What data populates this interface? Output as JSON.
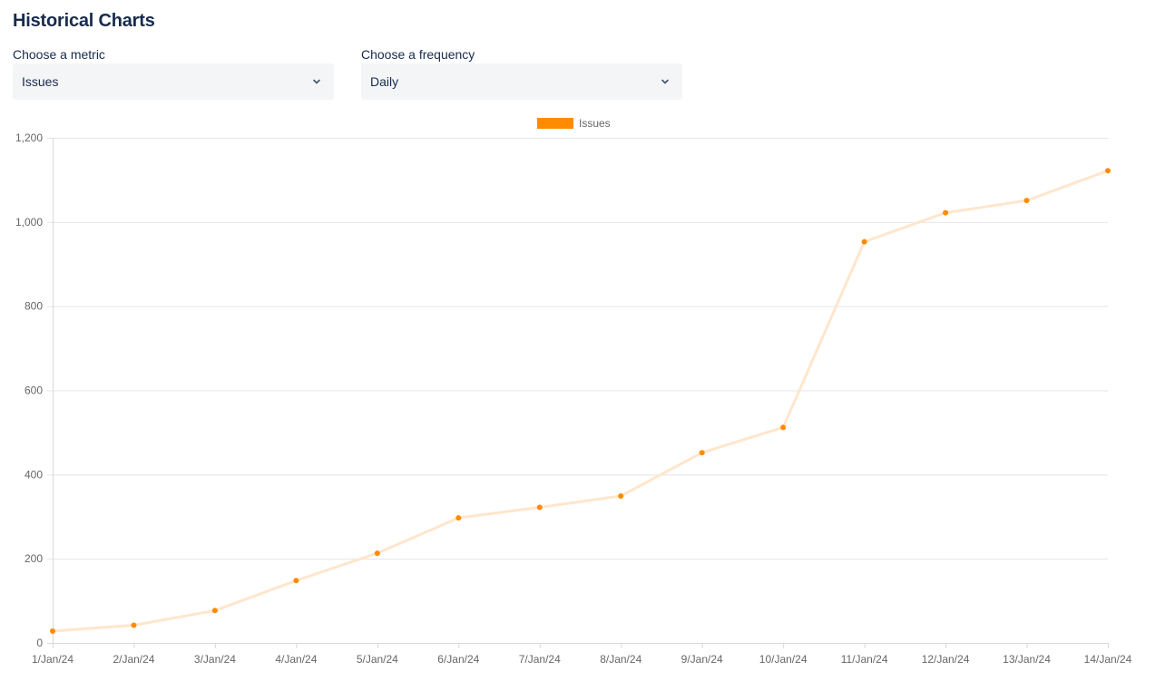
{
  "page": {
    "title": "Historical Charts"
  },
  "filters": {
    "metric": {
      "label": "Choose a metric",
      "value": "Issues",
      "icon": "chevron-down-icon"
    },
    "frequency": {
      "label": "Choose a frequency",
      "value": "Daily",
      "icon": "chevron-down-icon"
    }
  },
  "chart_data": {
    "type": "line",
    "title": "",
    "xlabel": "",
    "ylabel": "",
    "legend_position": "top-center",
    "grid": true,
    "ylim": [
      0,
      1200
    ],
    "yticks": [
      0,
      200,
      400,
      600,
      800,
      1000,
      1200
    ],
    "ytick_labels": [
      "0",
      "200",
      "400",
      "600",
      "800",
      "1,000",
      "1,200"
    ],
    "categories": [
      "1/Jan/24",
      "2/Jan/24",
      "3/Jan/24",
      "4/Jan/24",
      "5/Jan/24",
      "6/Jan/24",
      "7/Jan/24",
      "8/Jan/24",
      "9/Jan/24",
      "10/Jan/24",
      "11/Jan/24",
      "12/Jan/24",
      "13/Jan/24",
      "14/Jan/24"
    ],
    "series": [
      {
        "name": "Issues",
        "color": "#ff8b00",
        "line_color": "#ffe6cc",
        "values": [
          28,
          42,
          77,
          148,
          213,
          297,
          322,
          349,
          452,
          512,
          953,
          1022,
          1051,
          1122
        ]
      }
    ]
  }
}
